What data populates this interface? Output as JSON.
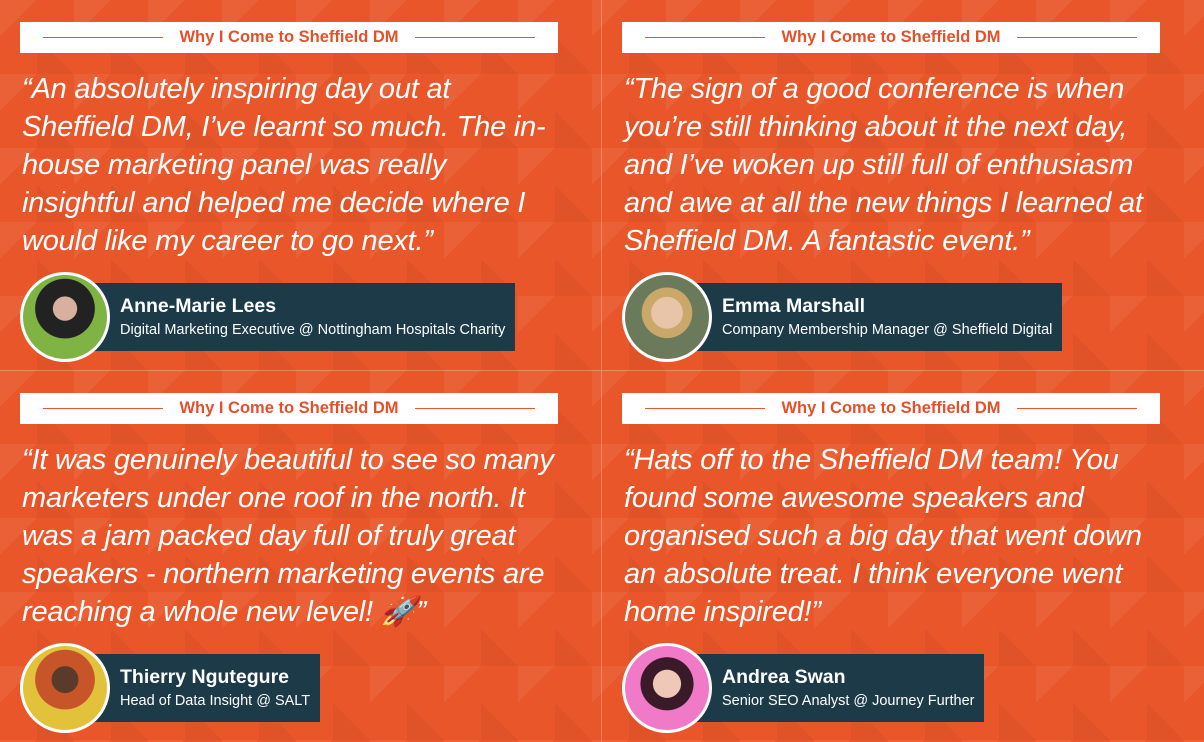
{
  "header_label": "Why I Come to Sheffield DM",
  "colors": {
    "accent": "#e9562a",
    "plate": "#1d3a48",
    "header_text": "#e4502a"
  },
  "cards": [
    {
      "quote_lines": [
        "“An absolutely inspiring day out at",
        "Sheffield DM, I’ve learnt so much. The in-",
        "house marketing panel was really",
        "insightful and helped me decide where I",
        "would like my career to go next.”"
      ],
      "name": "Anne-Marie Lees",
      "role": "Digital Marketing Executive @ Nottingham Hospitals Charity"
    },
    {
      "quote_lines": [
        "“The sign of a good conference is when",
        "you’re still thinking about it the next day,",
        "and I’ve woken up still full of enthusiasm",
        "and awe at all the new things I learned at",
        "Sheffield DM. A fantastic event.”"
      ],
      "name": "Emma Marshall",
      "role": "Company Membership Manager @ Sheffield Digital"
    },
    {
      "quote_lines": [
        "“It was genuinely beautiful to see so many",
        "marketers under one roof in the north. It",
        "was a jam packed day full of truly great",
        "speakers - northern marketing events are",
        "reaching a whole new level! 🚀”"
      ],
      "name": "Thierry Ngutegure",
      "role": "Head of Data Insight @ SALT"
    },
    {
      "quote_lines": [
        "“Hats off to the Sheffield DM team! You",
        "found some awesome speakers and",
        "organised such a big day that went down",
        "an absolute treat. I think everyone went",
        "home inspired!”"
      ],
      "name": "Andrea Swan",
      "role": "Senior SEO Analyst @ Journey Further"
    }
  ]
}
